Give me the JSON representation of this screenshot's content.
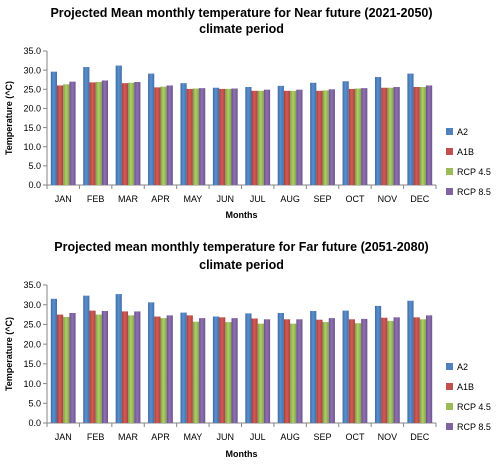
{
  "chart_data": [
    {
      "type": "bar",
      "title": "Projected Mean monthly temperature for Near future (2021-2050)",
      "subtitle": "climate period",
      "xlabel": "Months",
      "ylabel": "Temperature (^C)",
      "ylim": [
        0,
        35
      ],
      "ytick_step": 5,
      "ytick_labels": [
        "0.0",
        "5.0",
        "10.0",
        "15.0",
        "20.0",
        "25.0",
        "30.0",
        "35.0"
      ],
      "grid": false,
      "legend_position": "right",
      "categories": [
        "JAN",
        "FEB",
        "MAR",
        "APR",
        "MAY",
        "JUN",
        "JUL",
        "AUG",
        "SEP",
        "OCT",
        "NOV",
        "DEC"
      ],
      "series": [
        {
          "name": "A2",
          "color": "#4f81bd",
          "values": [
            29.6,
            30.8,
            31.2,
            29.1,
            26.6,
            25.4,
            25.6,
            25.9,
            26.7,
            27.1,
            28.2,
            29.1
          ]
        },
        {
          "name": "A1B",
          "color": "#c0504d",
          "values": [
            26.0,
            26.8,
            26.6,
            25.5,
            25.1,
            25.1,
            24.6,
            24.6,
            24.6,
            25.1,
            25.4,
            25.6
          ]
        },
        {
          "name": "RCP 4.5",
          "color": "#9bbb59",
          "values": [
            26.3,
            26.9,
            26.7,
            25.7,
            25.2,
            25.1,
            24.6,
            24.6,
            24.7,
            25.2,
            25.4,
            25.6
          ]
        },
        {
          "name": "RCP 8.5",
          "color": "#8064a2",
          "values": [
            27.0,
            27.3,
            26.9,
            26.0,
            25.3,
            25.2,
            24.9,
            24.9,
            25.0,
            25.3,
            25.6,
            26.0
          ]
        }
      ]
    },
    {
      "type": "bar",
      "title": "Projected mean monthly temperature for Far future (2051-2080)",
      "subtitle": "climate period",
      "xlabel": "Months",
      "ylabel": "Temperature (^C)",
      "ylim": [
        0,
        35
      ],
      "ytick_step": 5,
      "ytick_labels": [
        "0.0",
        "5.0",
        "10.0",
        "15.0",
        "20.0",
        "25.0",
        "30.0",
        "35.0"
      ],
      "grid": false,
      "legend_position": "right",
      "categories": [
        "JAN",
        "FEB",
        "MAR",
        "APR",
        "MAY",
        "JUN",
        "JUL",
        "AUG",
        "SEP",
        "OCT",
        "NOV",
        "DEC"
      ],
      "series": [
        {
          "name": "A2",
          "color": "#4f81bd",
          "values": [
            31.5,
            32.3,
            32.7,
            30.6,
            28.0,
            27.0,
            27.8,
            27.9,
            28.4,
            28.5,
            29.7,
            31.0
          ]
        },
        {
          "name": "A1B",
          "color": "#c0504d",
          "values": [
            27.5,
            28.5,
            28.3,
            27.0,
            27.3,
            26.8,
            26.5,
            26.3,
            26.2,
            26.3,
            26.7,
            26.8
          ]
        },
        {
          "name": "RCP 4.5",
          "color": "#9bbb59",
          "values": [
            26.9,
            27.5,
            27.3,
            26.6,
            25.7,
            25.6,
            25.2,
            25.2,
            25.6,
            25.3,
            25.9,
            26.3
          ]
        },
        {
          "name": "RCP 8.5",
          "color": "#8064a2",
          "values": [
            27.9,
            28.4,
            28.3,
            27.3,
            26.6,
            26.6,
            26.3,
            26.3,
            26.6,
            26.4,
            26.8,
            27.3
          ]
        }
      ]
    }
  ]
}
